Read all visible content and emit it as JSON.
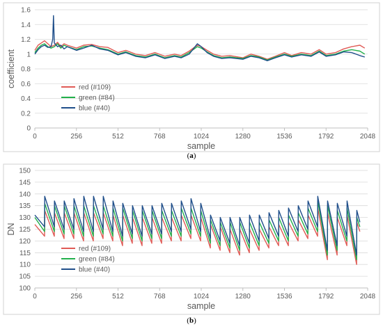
{
  "chart_data": [
    {
      "type": "line",
      "caption_prefix": "(",
      "caption_letter": "a",
      "caption_suffix": ")",
      "xlabel": "sample",
      "ylabel": "coefficient",
      "xlim": [
        0,
        2048
      ],
      "ylim": [
        0,
        1.6
      ],
      "xticks": [
        0,
        256,
        512,
        768,
        1024,
        1280,
        1536,
        1792,
        2048
      ],
      "yticks": [
        0,
        0.2,
        0.4,
        0.6,
        0.8,
        1,
        1.2,
        1.4,
        1.6
      ],
      "ytick_labels": [
        "0",
        "0.2",
        "0.4",
        "0.6",
        "0.8",
        "1",
        "1.2",
        "1.4",
        "1.6"
      ],
      "grid": "horizontal",
      "legend_position": "bottom-left",
      "series": [
        {
          "name": "red (#109)",
          "color": "#e05a55",
          "x": [
            0,
            20,
            40,
            60,
            80,
            100,
            120,
            140,
            160,
            180,
            200,
            256,
            300,
            350,
            400,
            450,
            512,
            560,
            620,
            680,
            740,
            800,
            860,
            900,
            950,
            1000,
            1024,
            1060,
            1100,
            1150,
            1200,
            1280,
            1330,
            1380,
            1430,
            1480,
            1536,
            1580,
            1640,
            1700,
            1750,
            1792,
            1850,
            1900,
            1950,
            2000,
            2030
          ],
          "y": [
            1.05,
            1.12,
            1.15,
            1.18,
            1.14,
            1.1,
            1.12,
            1.16,
            1.1,
            1.14,
            1.12,
            1.08,
            1.12,
            1.13,
            1.1,
            1.09,
            1.02,
            1.05,
            1.0,
            0.98,
            1.02,
            0.97,
            1.0,
            0.98,
            1.04,
            1.12,
            1.1,
            1.05,
            1.0,
            0.97,
            0.98,
            0.95,
            1.0,
            0.97,
            0.93,
            0.97,
            1.02,
            0.98,
            1.02,
            1.0,
            1.06,
            1.0,
            1.02,
            1.07,
            1.1,
            1.12,
            1.08
          ]
        },
        {
          "name": "green (#84)",
          "color": "#22b04b",
          "x": [
            0,
            20,
            40,
            60,
            80,
            100,
            120,
            140,
            160,
            180,
            200,
            256,
            300,
            350,
            400,
            450,
            512,
            560,
            620,
            680,
            740,
            800,
            860,
            900,
            950,
            1000,
            1024,
            1060,
            1100,
            1150,
            1200,
            1280,
            1330,
            1380,
            1430,
            1480,
            1536,
            1580,
            1640,
            1700,
            1750,
            1792,
            1850,
            1900,
            1950,
            2000,
            2030
          ],
          "y": [
            1.02,
            1.08,
            1.12,
            1.14,
            1.1,
            1.08,
            1.1,
            1.14,
            1.08,
            1.12,
            1.1,
            1.06,
            1.1,
            1.11,
            1.08,
            1.06,
            1.0,
            1.03,
            0.98,
            0.96,
            1.0,
            0.95,
            0.98,
            0.96,
            1.02,
            1.1,
            1.08,
            1.03,
            0.98,
            0.95,
            0.96,
            0.94,
            0.98,
            0.96,
            0.92,
            0.96,
            1.0,
            0.97,
            1.0,
            0.98,
            1.04,
            0.98,
            1.0,
            1.04,
            1.06,
            1.04,
            1.0
          ]
        },
        {
          "name": "blue (#40)",
          "color": "#1f4e8a",
          "x": [
            0,
            20,
            40,
            60,
            80,
            100,
            110,
            115,
            120,
            140,
            160,
            180,
            200,
            256,
            300,
            350,
            400,
            450,
            512,
            560,
            620,
            680,
            740,
            800,
            860,
            900,
            950,
            1000,
            1024,
            1060,
            1100,
            1150,
            1200,
            1280,
            1330,
            1380,
            1430,
            1480,
            1536,
            1580,
            1640,
            1700,
            1750,
            1792,
            1850,
            1900,
            1950,
            2000,
            2030
          ],
          "y": [
            1.0,
            1.06,
            1.1,
            1.12,
            1.09,
            1.1,
            1.2,
            1.52,
            1.15,
            1.1,
            1.12,
            1.07,
            1.1,
            1.05,
            1.08,
            1.12,
            1.07,
            1.05,
            0.99,
            1.02,
            0.97,
            0.95,
            0.99,
            0.94,
            0.97,
            0.95,
            1.0,
            1.14,
            1.1,
            1.02,
            0.97,
            0.94,
            0.95,
            0.93,
            0.97,
            0.95,
            0.91,
            0.95,
            0.99,
            0.96,
            0.99,
            0.97,
            1.03,
            0.97,
            0.99,
            1.03,
            1.02,
            0.98,
            0.96
          ]
        }
      ]
    },
    {
      "type": "line",
      "caption_prefix": "(",
      "caption_letter": "b",
      "caption_suffix": ")",
      "xlabel": "sample",
      "ylabel": "DN",
      "xlim": [
        0,
        2048
      ],
      "ylim": [
        100,
        150
      ],
      "xticks": [
        0,
        256,
        512,
        768,
        1024,
        1280,
        1536,
        1792,
        2048
      ],
      "yticks": [
        100,
        105,
        110,
        115,
        120,
        125,
        130,
        135,
        140,
        145,
        150
      ],
      "ytick_labels": [
        "100",
        "105",
        "110",
        "115",
        "120",
        "125",
        "130",
        "135",
        "140",
        "145",
        "150"
      ],
      "grid": "horizontal",
      "legend_position": "bottom-left",
      "series": [
        {
          "name": "red (#109)",
          "color": "#e05a55",
          "x": [
            0,
            60,
            61,
            120,
            121,
            180,
            181,
            240,
            241,
            300,
            301,
            360,
            361,
            420,
            421,
            480,
            481,
            540,
            541,
            600,
            601,
            660,
            661,
            720,
            721,
            780,
            781,
            840,
            841,
            900,
            901,
            960,
            961,
            1020,
            1021,
            1080,
            1081,
            1140,
            1141,
            1200,
            1201,
            1260,
            1261,
            1320,
            1321,
            1380,
            1381,
            1440,
            1441,
            1500,
            1501,
            1560,
            1561,
            1620,
            1621,
            1680,
            1681,
            1740,
            1741,
            1800,
            1801,
            1860,
            1861,
            1920,
            1921,
            1980,
            1981,
            2000
          ],
          "y": [
            127,
            122,
            133,
            122,
            132,
            121,
            132,
            121,
            132,
            120,
            132,
            120,
            132,
            121,
            132,
            120,
            131,
            118,
            131,
            119,
            130,
            118,
            130,
            119,
            130,
            119,
            130,
            120,
            130,
            120,
            131,
            121,
            131,
            120,
            130,
            117,
            127,
            116,
            126,
            115,
            125,
            114,
            125,
            115,
            125,
            116,
            125,
            117,
            126,
            118,
            127,
            118,
            128,
            120,
            129,
            121,
            131,
            122,
            134,
            112,
            132,
            114,
            130,
            118,
            131,
            110,
            128,
            124
          ]
        },
        {
          "name": "green (#84)",
          "color": "#22b04b",
          "x": [
            0,
            60,
            61,
            120,
            121,
            180,
            181,
            240,
            241,
            300,
            301,
            360,
            361,
            420,
            421,
            480,
            481,
            540,
            541,
            600,
            601,
            660,
            661,
            720,
            721,
            780,
            781,
            840,
            841,
            900,
            901,
            960,
            961,
            1020,
            1021,
            1080,
            1081,
            1140,
            1141,
            1200,
            1201,
            1260,
            1261,
            1320,
            1321,
            1380,
            1381,
            1440,
            1441,
            1500,
            1501,
            1560,
            1561,
            1620,
            1621,
            1680,
            1681,
            1740,
            1741,
            1800,
            1801,
            1860,
            1861,
            1920,
            1921,
            1980,
            1981,
            2000
          ],
          "y": [
            130,
            124,
            136,
            124,
            135,
            123,
            135,
            123,
            135,
            122,
            135,
            122,
            135,
            123,
            135,
            122,
            134,
            120,
            134,
            121,
            133,
            120,
            133,
            121,
            133,
            121,
            133,
            122,
            133,
            122,
            134,
            123,
            134,
            122,
            133,
            119,
            129,
            118,
            128,
            117,
            128,
            116,
            128,
            117,
            128,
            118,
            128,
            119,
            129,
            120,
            130,
            120,
            131,
            122,
            132,
            123,
            134,
            124,
            137,
            114,
            135,
            116,
            133,
            120,
            134,
            112,
            130,
            126
          ]
        },
        {
          "name": "blue (#40)",
          "color": "#1f4e8a",
          "x": [
            0,
            60,
            61,
            120,
            121,
            180,
            181,
            240,
            241,
            300,
            301,
            360,
            361,
            420,
            421,
            480,
            481,
            540,
            541,
            600,
            601,
            660,
            661,
            720,
            721,
            780,
            781,
            840,
            841,
            900,
            901,
            960,
            961,
            1020,
            1021,
            1080,
            1081,
            1140,
            1141,
            1200,
            1201,
            1260,
            1261,
            1320,
            1321,
            1380,
            1381,
            1440,
            1441,
            1500,
            1501,
            1560,
            1561,
            1620,
            1621,
            1680,
            1681,
            1740,
            1741,
            1800,
            1801,
            1860,
            1861,
            1920,
            1921,
            1980,
            1981,
            2000
          ],
          "y": [
            131,
            126,
            139,
            126,
            137,
            125,
            137,
            125,
            138,
            124,
            139,
            124,
            139,
            125,
            139,
            124,
            137,
            122,
            136,
            123,
            135,
            122,
            135,
            123,
            135,
            123,
            136,
            124,
            136,
            124,
            137,
            125,
            138,
            124,
            136,
            121,
            131,
            120,
            130,
            119,
            130,
            118,
            130,
            119,
            131,
            120,
            131,
            121,
            132,
            122,
            133,
            122,
            134,
            124,
            135,
            125,
            137,
            126,
            139,
            116,
            137,
            118,
            136,
            122,
            137,
            114,
            133,
            128
          ]
        }
      ]
    }
  ]
}
